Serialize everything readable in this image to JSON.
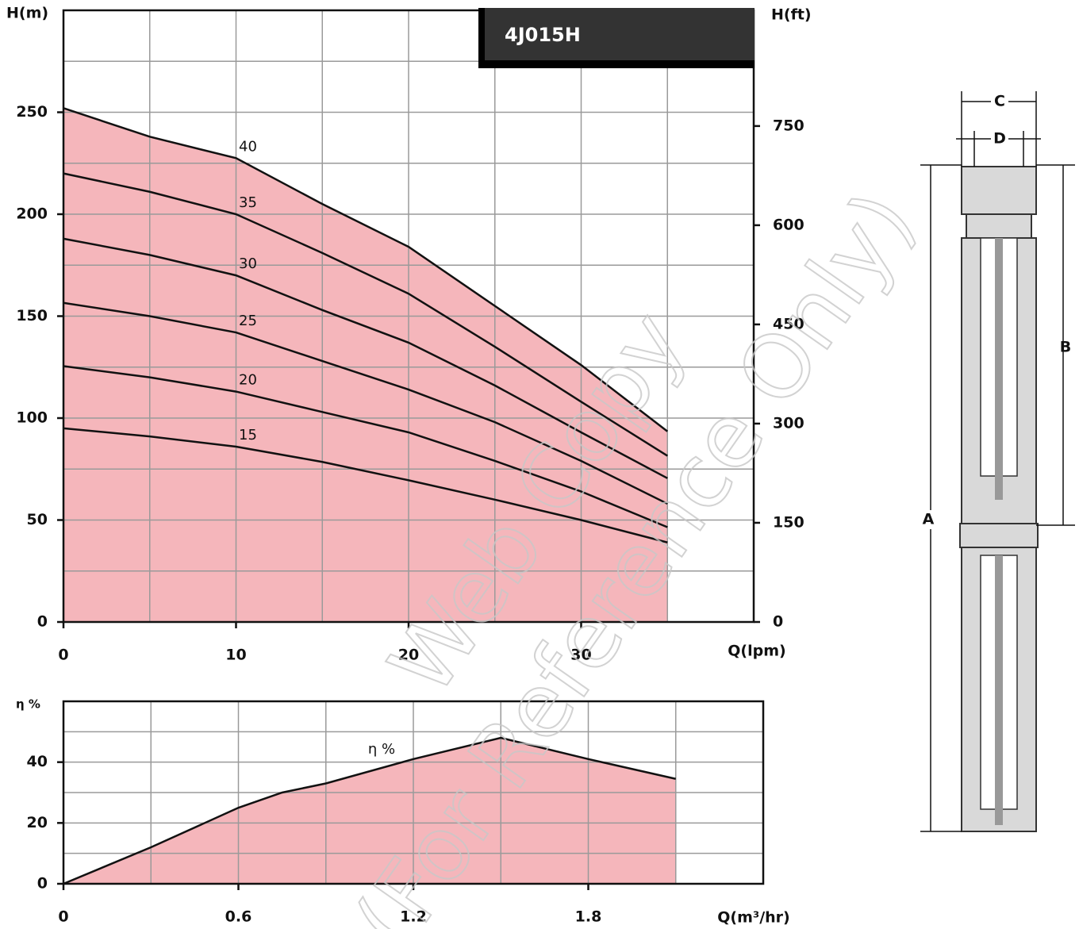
{
  "chart_data": [
    {
      "type": "line",
      "title": "4J015H",
      "xlabel": "Q(lpm)",
      "ylabel": "H(m)",
      "y2label": "H(ft)",
      "x": [
        0,
        5,
        10,
        15,
        20,
        25,
        30,
        35
      ],
      "series": [
        {
          "name": "40",
          "color": "#111111",
          "values": [
            252,
            238,
            227.5,
            205,
            184,
            155,
            126,
            93.5
          ]
        },
        {
          "name": "35",
          "color": "#111111",
          "values": [
            220,
            211,
            200,
            181,
            161,
            135,
            108,
            81.5
          ]
        },
        {
          "name": "30",
          "color": "#111111",
          "values": [
            188,
            180,
            170,
            153,
            137,
            116,
            93,
            70.5
          ]
        },
        {
          "name": "25",
          "color": "#111111",
          "values": [
            156.5,
            150,
            142,
            128,
            114,
            98,
            79,
            58
          ]
        },
        {
          "name": "20",
          "color": "#111111",
          "values": [
            125.5,
            120,
            113,
            103,
            93,
            79,
            64,
            46.5
          ]
        },
        {
          "name": "15",
          "color": "#111111",
          "values": [
            95,
            91,
            86,
            78.5,
            69.5,
            60,
            50,
            39
          ]
        }
      ],
      "area_color": "#f5b6bb",
      "xlim": [
        0,
        40
      ],
      "xticks": [
        0,
        10,
        20,
        30
      ],
      "xgrid": [
        0,
        5,
        10,
        15,
        20,
        25,
        30,
        35,
        40
      ],
      "ylim": [
        0,
        300
      ],
      "yticks": [
        0,
        50,
        100,
        150,
        200,
        250
      ],
      "ygrid": [
        0,
        25,
        50,
        75,
        100,
        125,
        150,
        175,
        200,
        225,
        250,
        275,
        300
      ],
      "y2lim": [
        0,
        925
      ],
      "y2ticks": [
        0,
        150,
        300,
        450,
        600,
        750
      ]
    },
    {
      "type": "line",
      "xlabel": "Q(m³/hr)",
      "ylabel": "η %",
      "x": [
        0,
        0.3,
        0.6,
        0.75,
        0.9,
        1.2,
        1.5,
        1.8,
        2.1
      ],
      "series": [
        {
          "name": "η %",
          "color": "#111111",
          "values": [
            0,
            12,
            25,
            30,
            33,
            41,
            48,
            41,
            34.5
          ]
        }
      ],
      "area_color": "#f5b6bb",
      "xlim": [
        0,
        2.4
      ],
      "xticks": [
        0,
        0.6,
        1.2,
        1.8
      ],
      "xgrid": [
        0,
        0.3,
        0.6,
        0.9,
        1.2,
        1.5,
        1.8,
        2.1,
        2.4
      ],
      "ylim": [
        0,
        60
      ],
      "yticks": [
        0,
        20,
        40
      ],
      "ygrid": [
        0,
        10,
        20,
        30,
        40,
        50,
        60
      ]
    }
  ],
  "drawing": {
    "labels": [
      "A",
      "B",
      "C",
      "D"
    ]
  },
  "watermark": [
    "Web Copy",
    "(For Reference Only)"
  ]
}
